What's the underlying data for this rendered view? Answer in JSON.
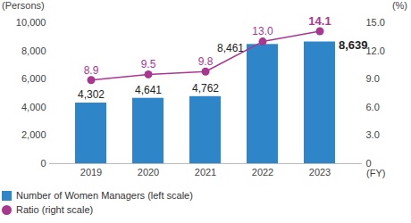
{
  "chart_data": {
    "type": "bar",
    "categories": [
      "2019",
      "2020",
      "2021",
      "2022",
      "2023"
    ],
    "xlabel": "(FY)",
    "ylabel": "(Persons)",
    "y2label": "(%)",
    "ylim": [
      0,
      10000
    ],
    "yticks": [
      0,
      {
        "value": 2000,
        "label": "2,000"
      },
      {
        "value": 4000,
        "label": "4,000"
      },
      {
        "value": 6000,
        "label": "6,000"
      },
      {
        "value": 8000,
        "label": "8,000"
      },
      {
        "value": 10000,
        "label": "10,000"
      }
    ],
    "y2lim": [
      0,
      15
    ],
    "y2ticks": [
      0,
      {
        "value": 3,
        "label": "3.0"
      },
      {
        "value": 6,
        "label": "6.0"
      },
      {
        "value": 9,
        "label": "9.0"
      },
      {
        "value": 12,
        "label": "12.0"
      },
      {
        "value": 15,
        "label": "15.0"
      }
    ],
    "data_labels": true,
    "legend": "bottom",
    "series": [
      {
        "name": "Number of Women Managers (left scale)",
        "type": "bar",
        "color": "#2e86c9",
        "values": [
          4302,
          4641,
          4762,
          8461,
          8639
        ],
        "value_labels": [
          "4,302",
          "4,641",
          "4,762",
          "8,461",
          "8,639"
        ]
      },
      {
        "name": "Ratio (right scale)",
        "type": "line",
        "axis": "y2",
        "color": "#a8388f",
        "marker": "circle",
        "values": [
          8.9,
          9.5,
          9.8,
          13.0,
          14.1
        ],
        "value_labels": [
          "8.9",
          "9.5",
          "9.8",
          "13.0",
          "14.1"
        ]
      }
    ]
  }
}
